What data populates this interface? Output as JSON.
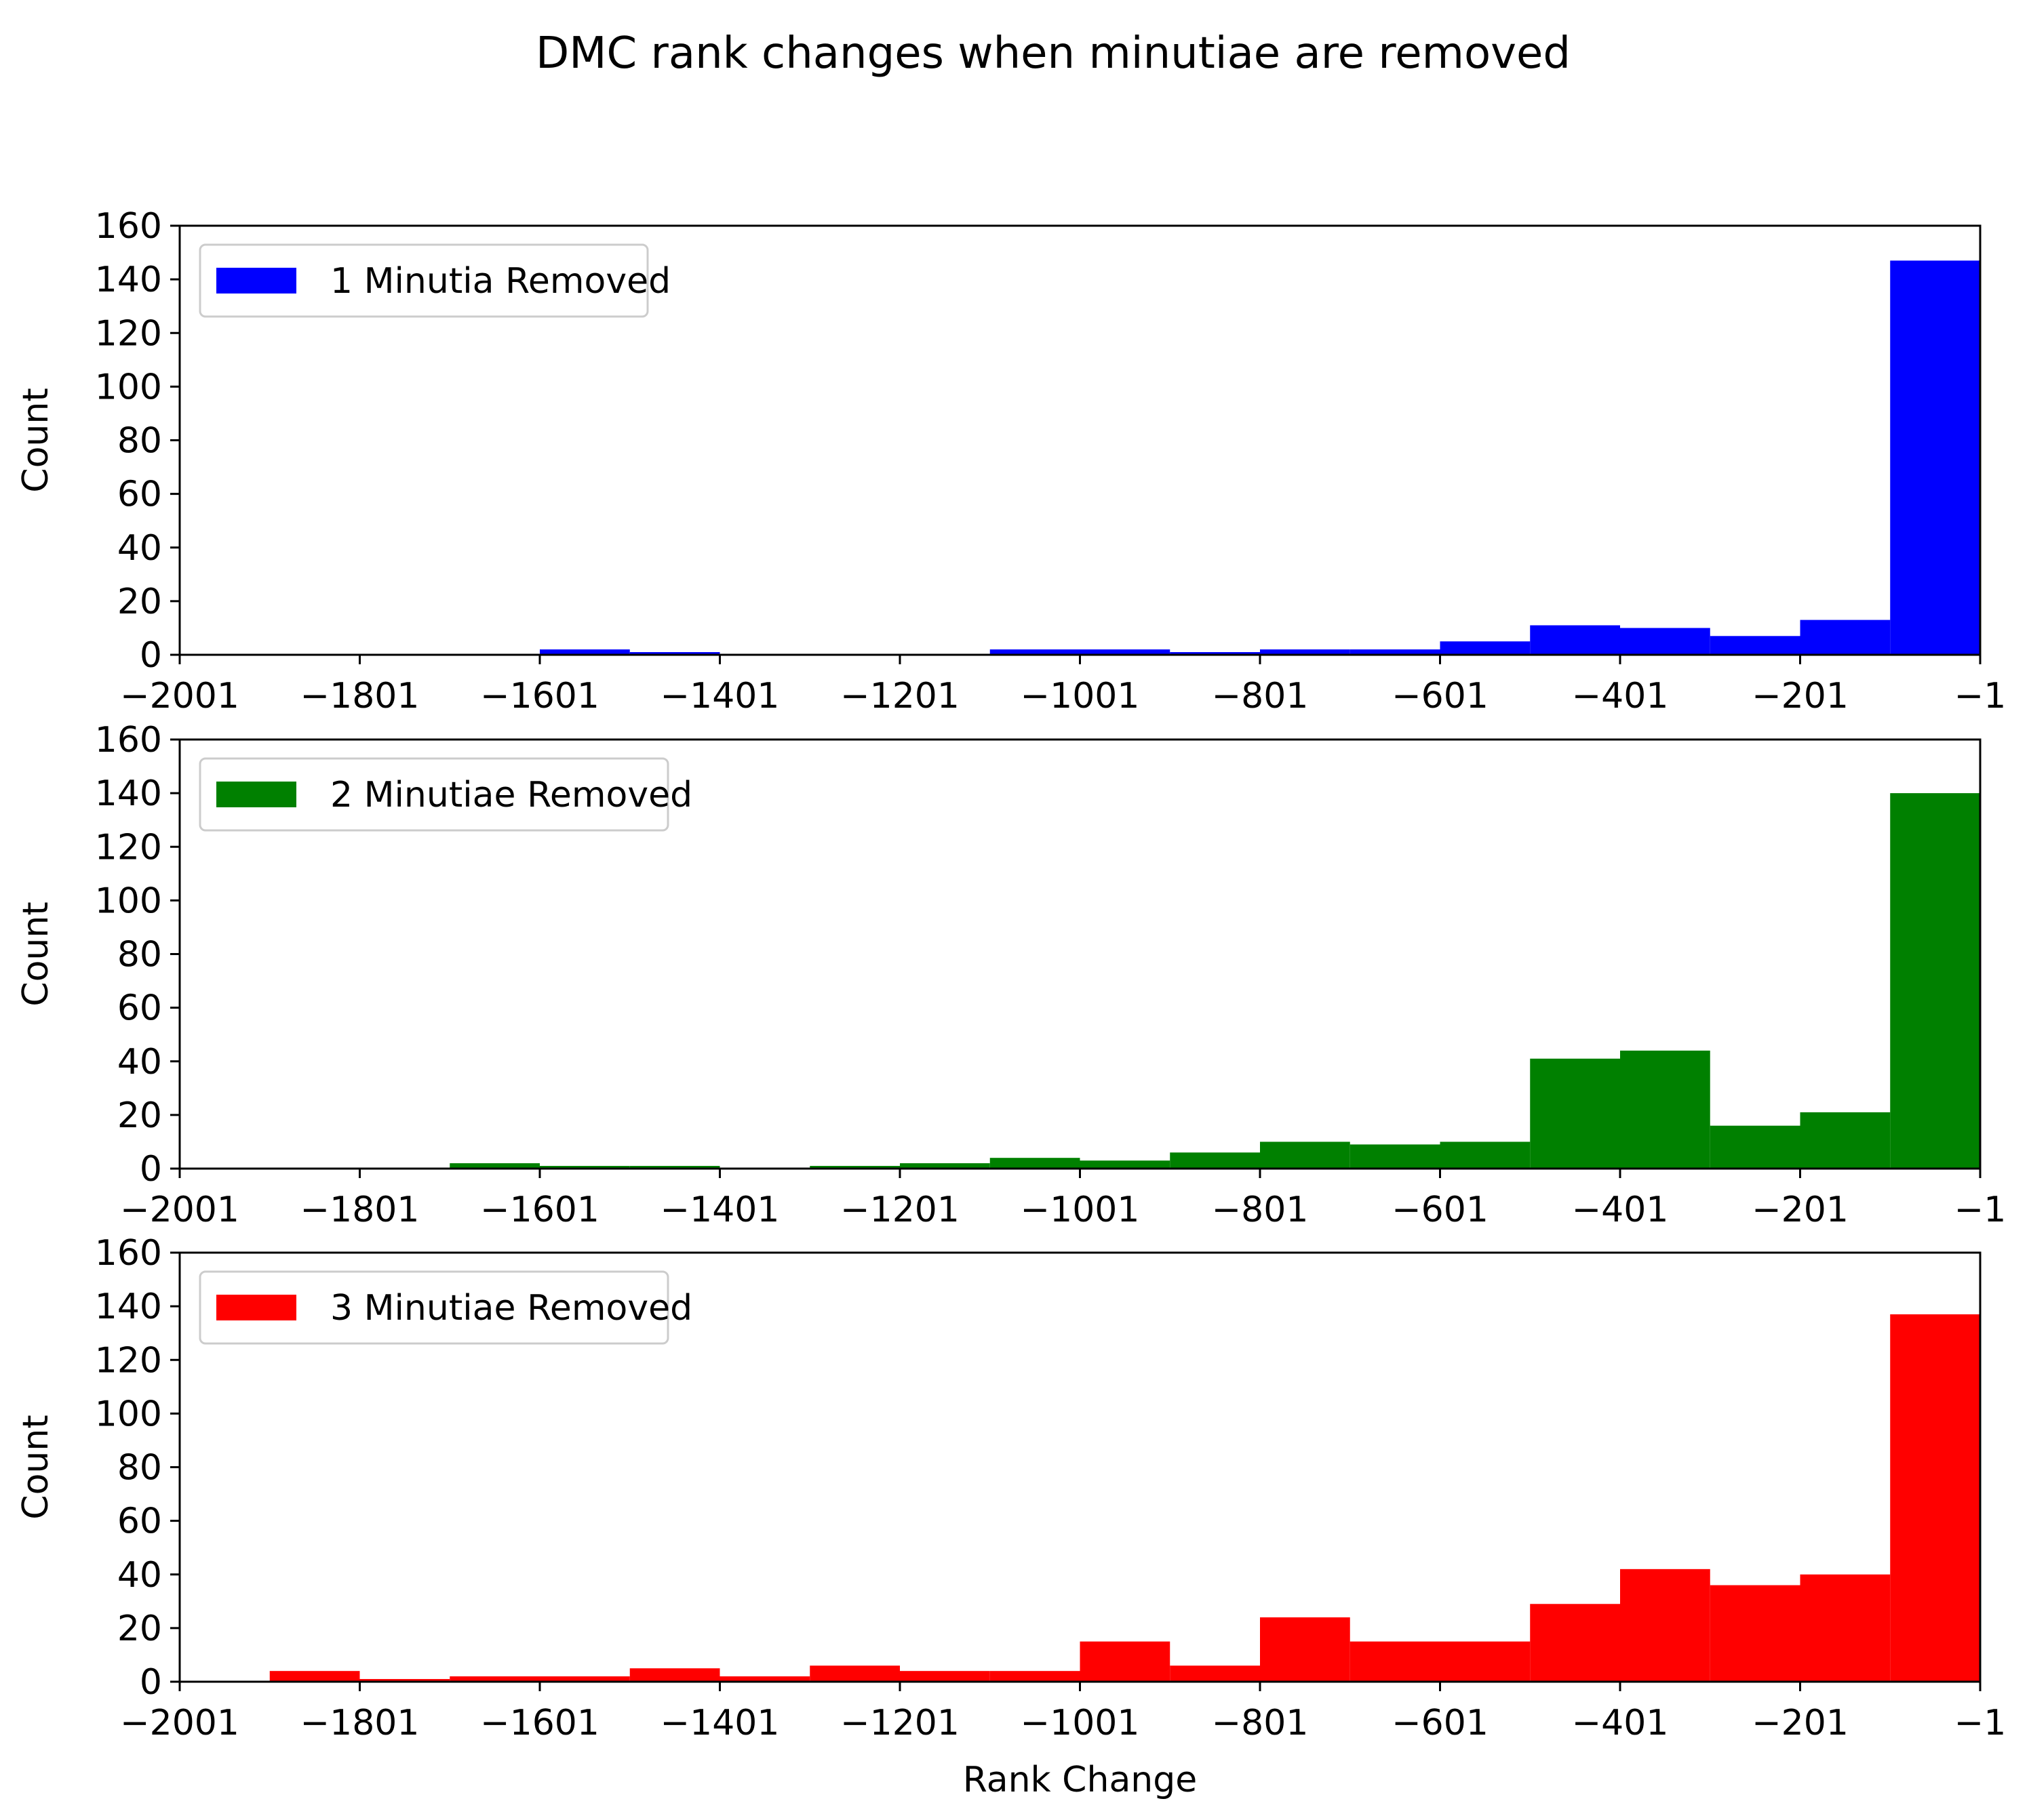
{
  "figure": {
    "title": "DMC rank changes when minutiae are removed"
  },
  "chart_data": [
    {
      "type": "bar",
      "subtype": "histogram",
      "title": "",
      "xlabel": "",
      "ylabel": "Count",
      "xlim": [
        -2001,
        -1
      ],
      "ylim": [
        0,
        160
      ],
      "x_ticks": [
        "−2001",
        "−1801",
        "−1601",
        "−1401",
        "−1201",
        "−1001",
        "−801",
        "−601",
        "−401",
        "−201",
        "−1"
      ],
      "x_tick_values": [
        -2001,
        -1801,
        -1601,
        -1401,
        -1201,
        -1001,
        -801,
        -601,
        -401,
        -201,
        -1
      ],
      "y_ticks": [
        "0",
        "20",
        "40",
        "60",
        "80",
        "100",
        "120",
        "140",
        "160"
      ],
      "y_tick_values": [
        0,
        20,
        40,
        60,
        80,
        100,
        120,
        140,
        160
      ],
      "grid": false,
      "legend": {
        "position": "top-left",
        "entries": [
          {
            "label": "1 Minutia Removed",
            "color": "#0000ff"
          }
        ]
      },
      "bin_edges": [
        -2001,
        -1901,
        -1801,
        -1701,
        -1601,
        -1501,
        -1401,
        -1301,
        -1201,
        -1101,
        -1001,
        -901,
        -801,
        -701,
        -601,
        -501,
        -401,
        -301,
        -201,
        -101,
        -1
      ],
      "series": [
        {
          "name": "1 Minutia Removed",
          "color": "#0000ff",
          "values": [
            0,
            0,
            0,
            0,
            2,
            1,
            0,
            0,
            0,
            2,
            2,
            1,
            2,
            2,
            5,
            11,
            10,
            7,
            13,
            147
          ]
        }
      ]
    },
    {
      "type": "bar",
      "subtype": "histogram",
      "title": "",
      "xlabel": "",
      "ylabel": "Count",
      "xlim": [
        -2001,
        -1
      ],
      "ylim": [
        0,
        160
      ],
      "x_ticks": [
        "−2001",
        "−1801",
        "−1601",
        "−1401",
        "−1201",
        "−1001",
        "−801",
        "−601",
        "−401",
        "−201",
        "−1"
      ],
      "x_tick_values": [
        -2001,
        -1801,
        -1601,
        -1401,
        -1201,
        -1001,
        -801,
        -601,
        -401,
        -201,
        -1
      ],
      "y_ticks": [
        "0",
        "20",
        "40",
        "60",
        "80",
        "100",
        "120",
        "140",
        "160"
      ],
      "y_tick_values": [
        0,
        20,
        40,
        60,
        80,
        100,
        120,
        140,
        160
      ],
      "grid": false,
      "legend": {
        "position": "top-left",
        "entries": [
          {
            "label": "2 Minutiae Removed",
            "color": "#008000"
          }
        ]
      },
      "bin_edges": [
        -2001,
        -1901,
        -1801,
        -1701,
        -1601,
        -1501,
        -1401,
        -1301,
        -1201,
        -1101,
        -1001,
        -901,
        -801,
        -701,
        -601,
        -501,
        -401,
        -301,
        -201,
        -101,
        -1
      ],
      "series": [
        {
          "name": "2 Minutiae Removed",
          "color": "#008000",
          "values": [
            0,
            0,
            0,
            2,
            1,
            1,
            0,
            1,
            2,
            4,
            3,
            6,
            10,
            9,
            10,
            41,
            44,
            16,
            21,
            140
          ]
        }
      ]
    },
    {
      "type": "bar",
      "subtype": "histogram",
      "title": "",
      "xlabel": "Rank Change",
      "ylabel": "Count",
      "xlim": [
        -2001,
        -1
      ],
      "ylim": [
        0,
        160
      ],
      "x_ticks": [
        "−2001",
        "−1801",
        "−1601",
        "−1401",
        "−1201",
        "−1001",
        "−801",
        "−601",
        "−401",
        "−201",
        "−1"
      ],
      "x_tick_values": [
        -2001,
        -1801,
        -1601,
        -1401,
        -1201,
        -1001,
        -801,
        -601,
        -401,
        -201,
        -1
      ],
      "y_ticks": [
        "0",
        "20",
        "40",
        "60",
        "80",
        "100",
        "120",
        "140",
        "160"
      ],
      "y_tick_values": [
        0,
        20,
        40,
        60,
        80,
        100,
        120,
        140,
        160
      ],
      "grid": false,
      "legend": {
        "position": "top-left",
        "entries": [
          {
            "label": "3 Minutiae Removed",
            "color": "#ff0000"
          }
        ]
      },
      "bin_edges": [
        -2001,
        -1901,
        -1801,
        -1701,
        -1601,
        -1501,
        -1401,
        -1301,
        -1201,
        -1101,
        -1001,
        -901,
        -801,
        -701,
        -601,
        -501,
        -401,
        -301,
        -201,
        -101,
        -1
      ],
      "series": [
        {
          "name": "3 Minutiae Removed",
          "color": "#ff0000",
          "values": [
            0,
            4,
            1,
            2,
            2,
            5,
            2,
            6,
            4,
            4,
            15,
            6,
            24,
            15,
            15,
            29,
            42,
            36,
            40,
            137
          ]
        }
      ]
    }
  ]
}
